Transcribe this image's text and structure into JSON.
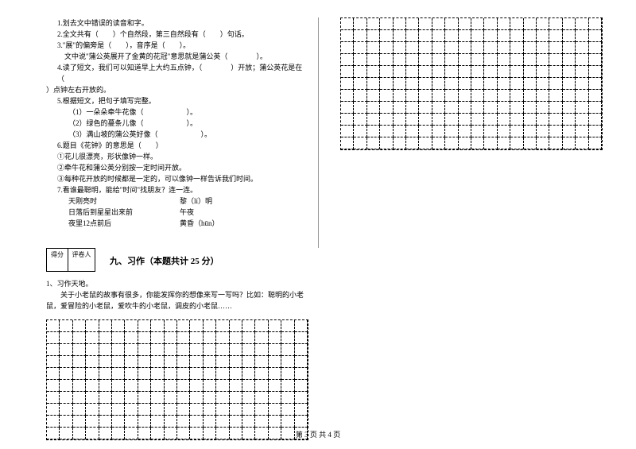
{
  "left": {
    "lines": [
      "1.划去文中错误的读音和字。",
      "2.全文共有（　　）个自然段，第三自然段有（　　）句话。",
      "3.\"展\"的偏旁是（　　），音序是（　　）。",
      "　文中说\"蒲公英展开了金黄的花冠\"意思就是蒲公英（　　　　）。",
      "4.读了短文，我们可以知道早上大约五点钟，（　　　　）开放；蒲公英花是在（",
      "）点钟左右开放的。",
      "5.根据短文，把句子填写完整。",
      "（1）一朵朵牵牛花像（　　　　　　）。",
      "（2）绿色的蔓条儿像（　　　　　　）。",
      "（3）满山坡的蒲公英好像（　　　　　　）。",
      "6.题目《花钟》的意思是（　　）",
      "①花儿很漂亮，形状像钟一样。",
      "②牵牛花和蒲公英分别按一定时间开放。",
      "③每种花开放的时候都是一定的，可以像钟一样告诉我们时间。",
      "7.看谁最聪明，能给\"时间\"找朋友？连一连。"
    ],
    "pair1a": "天刚亮时",
    "pair1b": "黎（lí）明",
    "pair2a": "日落后到星星出来前",
    "pair2b": "午夜",
    "pair3a": "夜里12点前后",
    "pair3b": "黄昏（hūn）",
    "score1": "得分",
    "score2": "评卷人",
    "section": "九、习作（本题共计 25 分）",
    "essay_label": "1、习作天地。",
    "essay_prompt": "　　关于小老鼠的故事有很多，你能发挥你的想像来写一写吗？比如：聪明的小老鼠，爱冒险的小老鼠，爱吹牛的小老鼠，调皮的小老鼠……"
  },
  "grid_left": {
    "cols": 20,
    "rows": 10
  },
  "grid_right": {
    "cols": 20,
    "rows": 11
  },
  "footer": "第 3 页 共 4 页",
  "style": {
    "page_bg": "#ffffff",
    "text_color": "#000000",
    "divider_color": "#999999",
    "font_size_body": 9,
    "font_size_section": 11,
    "line_height": 14,
    "grid_border": "dashed"
  }
}
